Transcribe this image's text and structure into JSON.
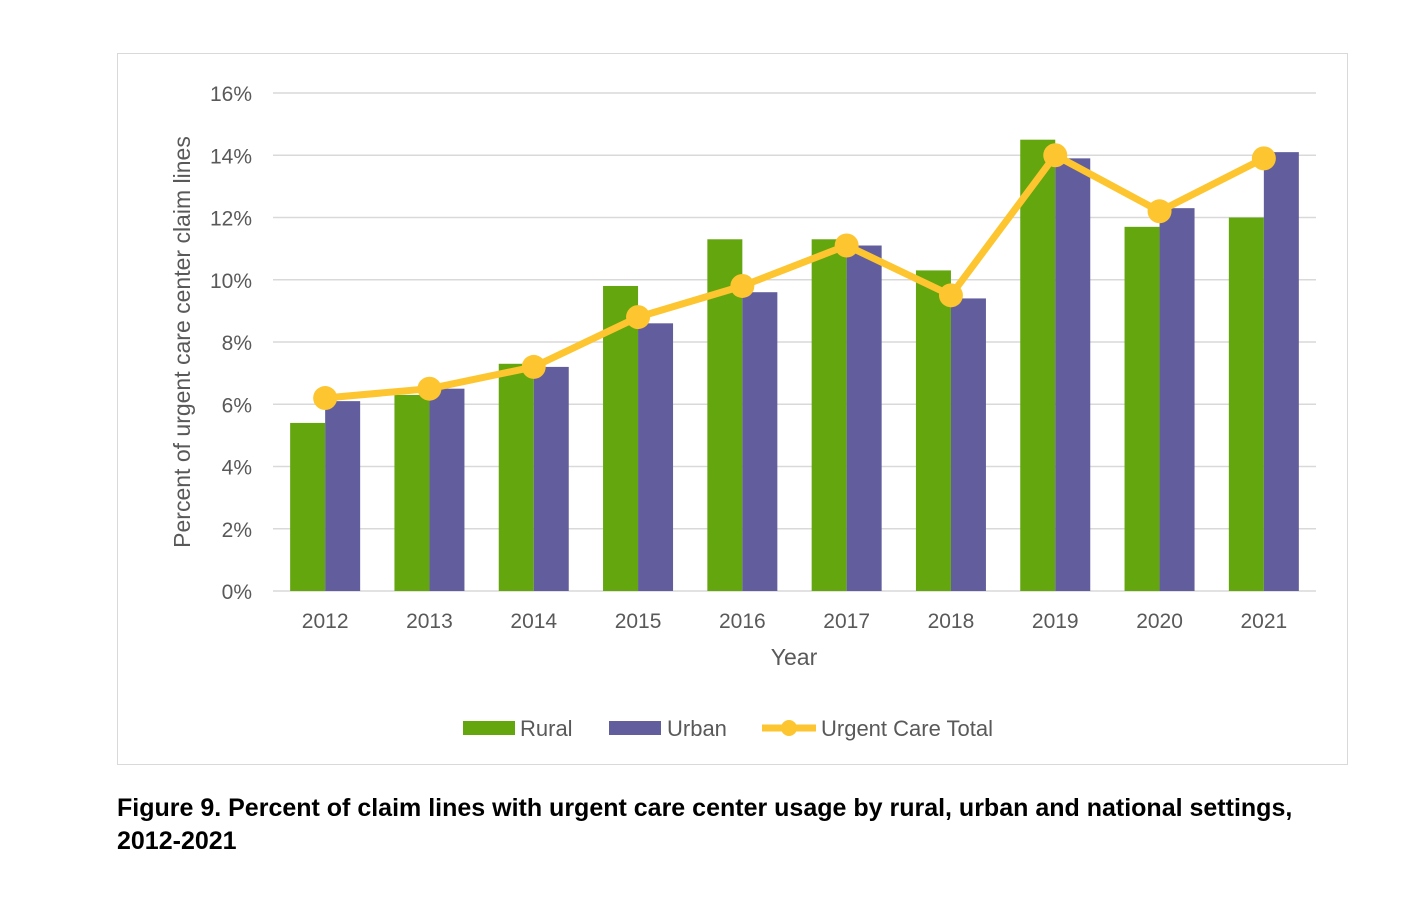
{
  "chart_data": {
    "type": "bar",
    "categories": [
      "2012",
      "2013",
      "2014",
      "2015",
      "2016",
      "2017",
      "2018",
      "2019",
      "2020",
      "2021"
    ],
    "series": [
      {
        "name": "Rural",
        "type": "bar",
        "color": "#63a60e",
        "values": [
          5.4,
          6.3,
          7.3,
          9.8,
          11.3,
          11.3,
          10.3,
          14.5,
          11.7,
          12.0
        ]
      },
      {
        "name": "Urban",
        "type": "bar",
        "color": "#625e9d",
        "values": [
          6.1,
          6.5,
          7.2,
          8.6,
          9.6,
          11.1,
          9.4,
          13.9,
          12.3,
          14.1
        ]
      },
      {
        "name": "Urgent Care Total",
        "type": "line",
        "color": "#fdc52f",
        "values": [
          6.2,
          6.5,
          7.2,
          8.8,
          9.8,
          11.1,
          9.5,
          14.0,
          12.2,
          13.9
        ]
      }
    ],
    "xlabel": "Year",
    "ylabel": "Percent of urgent care center claim lines",
    "ylim": [
      0,
      16
    ],
    "yticks": [
      "0%",
      "2%",
      "4%",
      "6%",
      "8%",
      "10%",
      "12%",
      "14%",
      "16%"
    ],
    "grid": true,
    "legend": "bottom"
  },
  "caption": "Figure 9. Percent of claim lines with urgent care center usage by rural, urban and national settings, 2012-2021"
}
